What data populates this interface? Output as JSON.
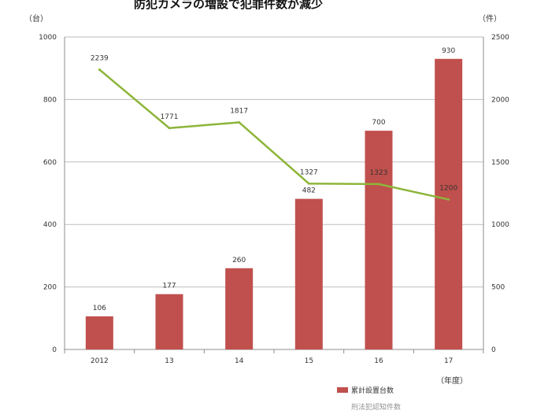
{
  "chart_data": {
    "type": "bar",
    "title": "防犯カメラの増設で犯罪件数が減少",
    "categories": [
      "2012",
      "13",
      "14",
      "15",
      "16",
      "17"
    ],
    "x_unit": "（年度）",
    "y_left_unit": "（台）",
    "y_right_unit": "（件）",
    "ylim_left": [
      0,
      1000
    ],
    "ylim_right": [
      0,
      2500
    ],
    "yticks_left": [
      "0",
      "200",
      "400",
      "600",
      "800",
      "1000"
    ],
    "yticks_right": [
      "0",
      "500",
      "1000",
      "1500",
      "2000",
      "2500"
    ],
    "grid": true,
    "legend_position": "bottom",
    "series": [
      {
        "name": "累計設置台数",
        "type": "bar",
        "axis": "left",
        "color": "#c0504d",
        "values": [
          106,
          177,
          260,
          482,
          700,
          930
        ]
      },
      {
        "name": "刑法犯認知件数",
        "type": "line",
        "axis": "right",
        "color": "#8db53a",
        "values": [
          2239,
          1771,
          1817,
          1327,
          1323,
          1200
        ]
      }
    ]
  }
}
